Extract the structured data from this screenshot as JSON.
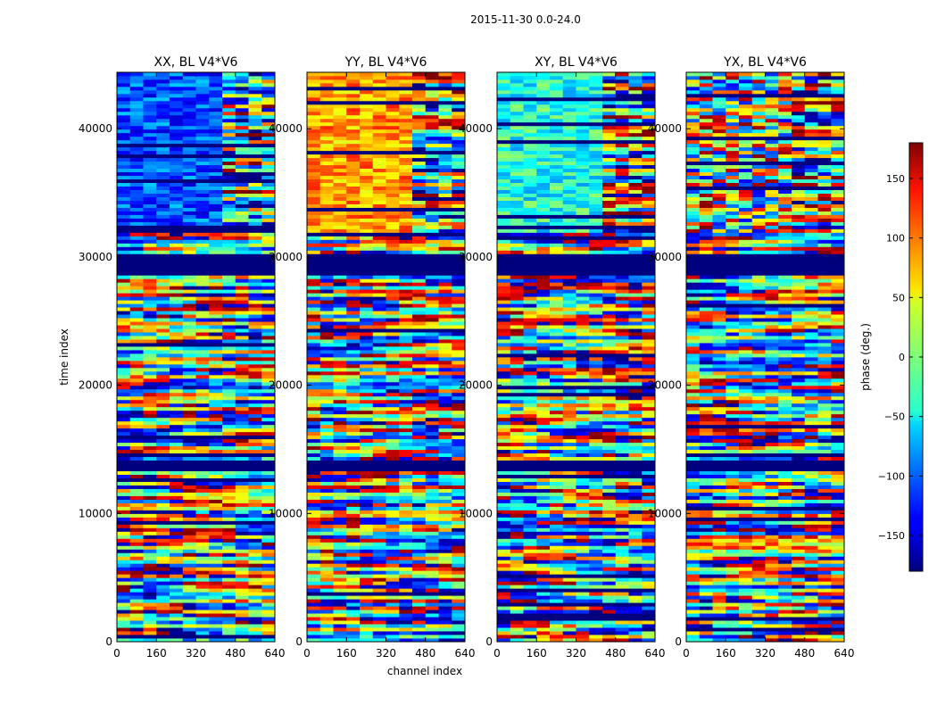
{
  "figure_title": "2015-11-30 0.0-24.0",
  "chart_data": {
    "type": "heatmap",
    "title": "2015-11-30 0.0-24.0",
    "xlabel": "channel index",
    "ylabel": "time index",
    "xlim": [
      0,
      640
    ],
    "ylim": [
      0,
      44400
    ],
    "x_ticks": [
      0,
      160,
      320,
      480,
      640
    ],
    "y_ticks": [
      0,
      10000,
      20000,
      30000,
      40000
    ],
    "colormap": "jet",
    "panels": [
      {
        "title": "XX, BL V4*V6",
        "product": "XX"
      },
      {
        "title": "YY, BL V4*V6",
        "product": "YY"
      },
      {
        "title": "XY, BL V4*V6",
        "product": "XY"
      },
      {
        "title": "YX, BL V4*V6",
        "product": "YX"
      }
    ],
    "colorbar": {
      "label": "phase (deg.)",
      "range": [
        -180,
        180
      ],
      "ticks": [
        -150,
        -100,
        -50,
        0,
        50,
        100,
        150
      ]
    }
  }
}
